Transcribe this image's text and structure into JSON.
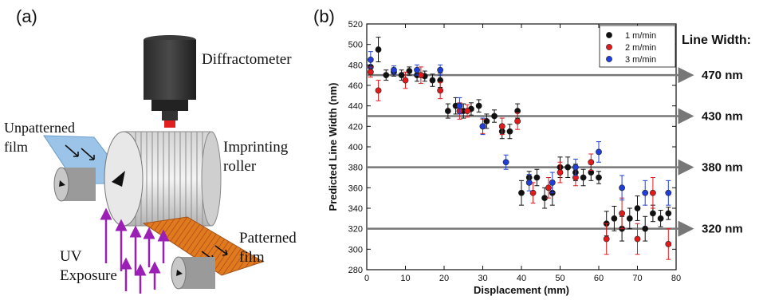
{
  "panel_a": {
    "label": "(a)",
    "diffractometer": "Diffractometer",
    "unpatterned_film": [
      "Unpatterned",
      "film"
    ],
    "imprinting_roller": [
      "Imprinting",
      "roller"
    ],
    "uv_exposure": [
      "UV",
      "Exposure"
    ],
    "patterned_film": [
      "Patterned",
      "film"
    ]
  },
  "panel_b": {
    "label": "(b)",
    "line_width_header": "Line Width:"
  },
  "chart_data": {
    "type": "scatter",
    "xlabel": "Displacement (mm)",
    "ylabel": "Predicted Line Width (nm)",
    "xlim": [
      0,
      80
    ],
    "ylim": [
      280,
      520
    ],
    "xticks": [
      0,
      10,
      20,
      30,
      40,
      50,
      60,
      70,
      80
    ],
    "yticks": [
      280,
      300,
      320,
      340,
      360,
      380,
      400,
      420,
      440,
      460,
      480,
      500,
      520
    ],
    "legend_position": "top-right",
    "reference_lines": [
      {
        "y": 470,
        "label": "470 nm"
      },
      {
        "y": 430,
        "label": "430 nm"
      },
      {
        "y": 380,
        "label": "380 nm"
      },
      {
        "y": 320,
        "label": "320 nm"
      }
    ],
    "series": [
      {
        "name": "1 m/min",
        "color": "#111111",
        "points": [
          [
            1,
            478,
            6
          ],
          [
            3,
            495,
            12
          ],
          [
            5,
            470,
            5
          ],
          [
            7,
            473,
            4
          ],
          [
            9,
            470,
            5
          ],
          [
            11,
            474,
            4
          ],
          [
            13,
            470,
            6
          ],
          [
            15,
            469,
            5
          ],
          [
            17,
            465,
            6
          ],
          [
            19,
            465,
            7
          ],
          [
            21,
            435,
            7
          ],
          [
            23,
            440,
            8
          ],
          [
            25,
            435,
            7
          ],
          [
            27,
            437,
            6
          ],
          [
            29,
            440,
            6
          ],
          [
            31,
            425,
            7
          ],
          [
            33,
            430,
            6
          ],
          [
            35,
            415,
            7
          ],
          [
            37,
            415,
            7
          ],
          [
            39,
            435,
            7
          ],
          [
            40,
            355,
            12
          ],
          [
            42,
            370,
            6
          ],
          [
            44,
            370,
            8
          ],
          [
            46,
            350,
            10
          ],
          [
            48,
            355,
            12
          ],
          [
            50,
            380,
            10
          ],
          [
            52,
            380,
            10
          ],
          [
            54,
            375,
            8
          ],
          [
            56,
            370,
            8
          ],
          [
            58,
            375,
            8
          ],
          [
            60,
            370,
            6
          ],
          [
            62,
            325,
            12
          ],
          [
            64,
            330,
            12
          ],
          [
            66,
            320,
            12
          ],
          [
            68,
            330,
            10
          ],
          [
            70,
            340,
            12
          ],
          [
            72,
            320,
            12
          ],
          [
            74,
            335,
            8
          ],
          [
            76,
            330,
            8
          ],
          [
            78,
            335,
            6
          ]
        ]
      },
      {
        "name": "2 m/min",
        "color": "#e31a1c",
        "points": [
          [
            1,
            473,
            5
          ],
          [
            3,
            455,
            10
          ],
          [
            10,
            465,
            8
          ],
          [
            14,
            470,
            8
          ],
          [
            19,
            455,
            8
          ],
          [
            24,
            435,
            8
          ],
          [
            26,
            435,
            6
          ],
          [
            30,
            420,
            7
          ],
          [
            35,
            420,
            8
          ],
          [
            39,
            425,
            8
          ],
          [
            43,
            355,
            10
          ],
          [
            47,
            360,
            10
          ],
          [
            50,
            375,
            10
          ],
          [
            54,
            370,
            8
          ],
          [
            58,
            385,
            8
          ],
          [
            62,
            310,
            15
          ],
          [
            66,
            335,
            15
          ],
          [
            70,
            310,
            15
          ],
          [
            74,
            355,
            15
          ],
          [
            78,
            305,
            15
          ]
        ]
      },
      {
        "name": "3 m/min",
        "color": "#1f3fd8",
        "points": [
          [
            1,
            485,
            8
          ],
          [
            7,
            475,
            4
          ],
          [
            13,
            475,
            5
          ],
          [
            19,
            475,
            5
          ],
          [
            24,
            440,
            8
          ],
          [
            30,
            420,
            8
          ],
          [
            36,
            385,
            7
          ],
          [
            42,
            365,
            8
          ],
          [
            48,
            365,
            10
          ],
          [
            54,
            380,
            8
          ],
          [
            60,
            395,
            10
          ],
          [
            66,
            360,
            12
          ],
          [
            72,
            355,
            12
          ],
          [
            78,
            355,
            12
          ]
        ]
      }
    ]
  }
}
